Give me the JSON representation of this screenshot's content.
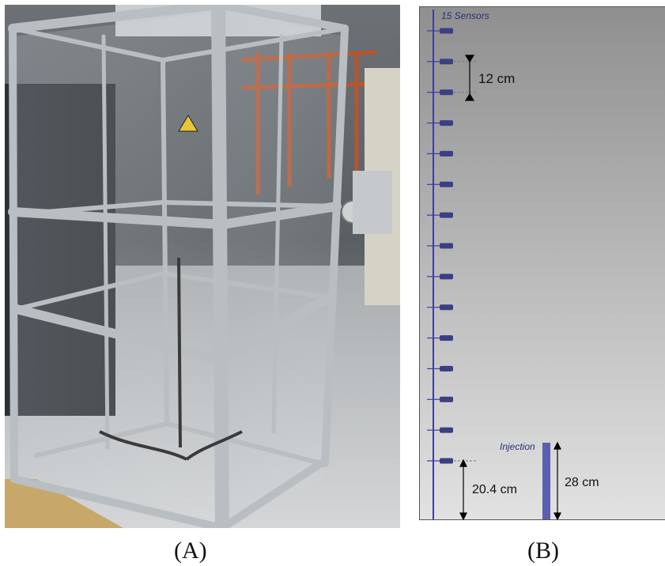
{
  "panel_a": {
    "caption": "(A)",
    "photo": "glass-enclosure-aluminium-frame-photo"
  },
  "panel_b": {
    "caption": "(B)",
    "sensors_label": "15 Sensors",
    "sensor_count": 15,
    "spacing_label": "12 cm",
    "injection_label": "Injection",
    "injection_height_label": "28 cm",
    "bottom_offset_label": "20.4 cm",
    "colors": {
      "sensor": "#3a3f85",
      "axis_line": "#3a3fa0",
      "injection_bar": "#5b5fb0",
      "label_text": "#2a2f7a",
      "bg_top": "#8f8f8f",
      "bg_bottom": "#e2e2e2"
    }
  }
}
